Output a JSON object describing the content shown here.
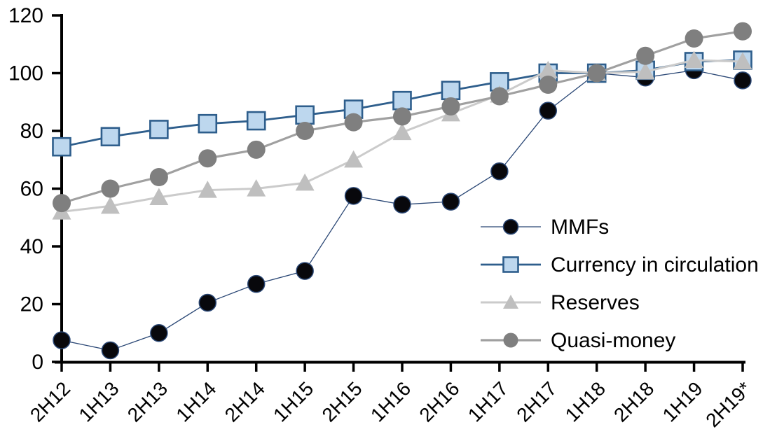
{
  "chart_data": {
    "type": "line",
    "title": "",
    "categories": [
      "2H12",
      "1H13",
      "2H13",
      "1H14",
      "2H14",
      "1H15",
      "2H15",
      "1H16",
      "2H16",
      "1H17",
      "2H17",
      "1H18",
      "2H18",
      "1H19",
      "2H19*"
    ],
    "series": [
      {
        "name": "MMFs",
        "marker": "circle",
        "marker_fill": "#08080c",
        "marker_stroke": "#2a4775",
        "line_color": "#2a4775",
        "line_width": 1.3,
        "marker_radius": 12,
        "values": [
          7.5,
          4,
          10,
          20.5,
          27,
          31.5,
          57.5,
          54.5,
          55.5,
          66,
          87,
          100,
          98.5,
          101,
          97.5
        ]
      },
      {
        "name": "Currency in circulation",
        "marker": "square",
        "marker_fill": "#bdd7ee",
        "marker_stroke": "#2e5e8c",
        "line_color": "#2e5e8c",
        "line_width": 2.8,
        "marker_radius": 12.5,
        "values": [
          74.5,
          78,
          80.5,
          82.5,
          83.5,
          85.5,
          87.5,
          90.5,
          94,
          97,
          100,
          100,
          101,
          104,
          104.5
        ]
      },
      {
        "name": "Reserves",
        "marker": "triangle",
        "marker_fill": "#bfbfbf",
        "marker_stroke": "none",
        "line_color": "#cbcbcb",
        "line_width": 3,
        "marker_radius": 13.5,
        "values": [
          52,
          54,
          57,
          59.5,
          60,
          62,
          70,
          79.5,
          86,
          92.5,
          101,
          100,
          100.5,
          104.5,
          104
        ]
      },
      {
        "name": "Quasi-money",
        "marker": "circle",
        "marker_fill": "#7f7f7f",
        "marker_stroke": "none",
        "line_color": "#a0a0a0",
        "line_width": 3.2,
        "marker_radius": 13,
        "values": [
          55,
          60,
          64,
          70.5,
          73.5,
          80,
          83,
          85,
          88.5,
          92,
          96,
          100,
          106,
          112,
          114.5
        ]
      }
    ],
    "y_axis": {
      "min": 0,
      "max": 120,
      "step": 20,
      "tick_labels": [
        "0",
        "20",
        "40",
        "60",
        "80",
        "100",
        "120"
      ]
    },
    "x_axis": {
      "label_rotation": -45
    },
    "legend": {
      "position": "right-center",
      "items": [
        "MMFs",
        "Currency in circulation",
        "Reserves",
        "Quasi-money"
      ]
    },
    "grid": false,
    "axis_color": "#000000",
    "background": "#ffffff"
  }
}
